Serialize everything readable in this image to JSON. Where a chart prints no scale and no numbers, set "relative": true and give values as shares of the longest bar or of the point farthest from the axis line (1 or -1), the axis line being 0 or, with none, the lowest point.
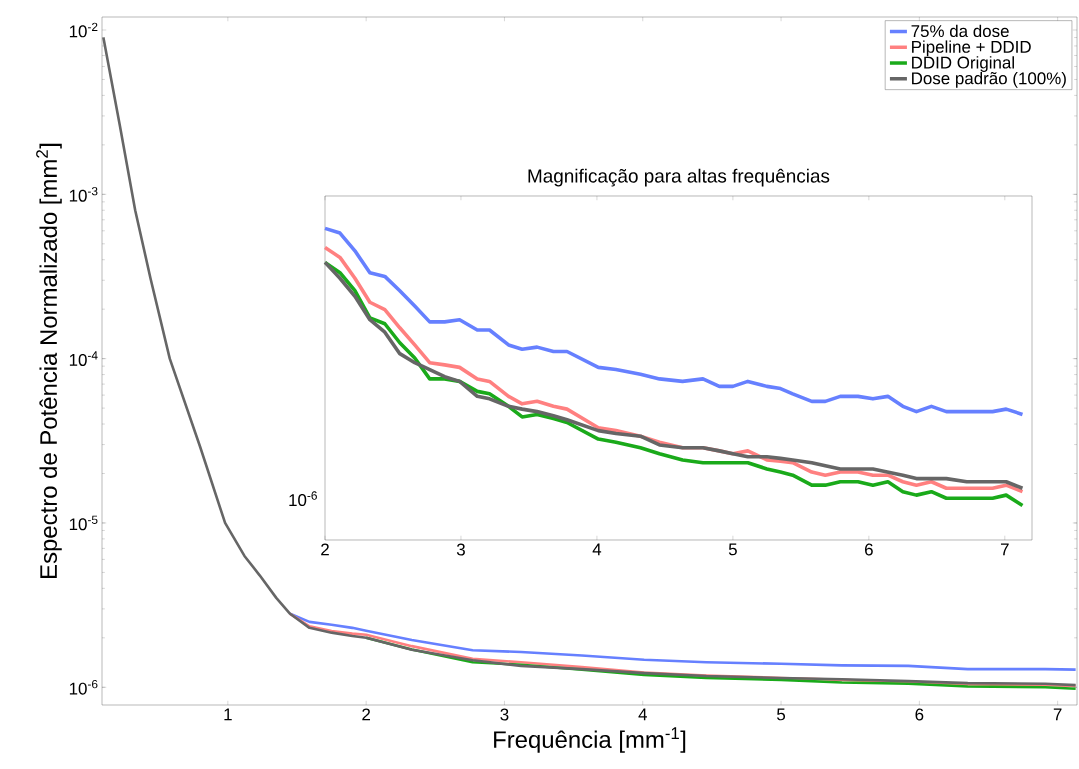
{
  "chart_data": [
    {
      "type": "line",
      "xlabel": "Frequência [mm$^{-1}$]",
      "ylabel": "Espectro de Potência Normalizado [mm$^{2}$]",
      "log": "y",
      "legend": "top right",
      "xlim": [
        0.09,
        7.14
      ],
      "ylim": [
        7.8e-07,
        0.012
      ],
      "xticks": [
        1,
        2,
        3,
        4,
        5,
        6,
        7
      ],
      "yticks": [
        {
          "value": 1e-06,
          "label": "10$^{-6}$"
        },
        {
          "value": 1e-05,
          "label": "10$^{-5}$"
        },
        {
          "value": 0.0001,
          "label": "10$^{-4}$"
        },
        {
          "value": 0.001,
          "label": "10$^{-3}$"
        },
        {
          "value": 0.01,
          "label": "10$^{-2}$"
        }
      ],
      "x": [
        0.1,
        0.22,
        0.33,
        0.44,
        0.58,
        0.8,
        0.98,
        1.12,
        1.23,
        1.35,
        1.45,
        1.59,
        1.75,
        1.9,
        2.0,
        2.33,
        2.77,
        3.12,
        3.56,
        4.01,
        4.46,
        5.0,
        5.44,
        5.92,
        6.35,
        6.91,
        7.13
      ],
      "series": [
        {
          "name": "75% da dose",
          "color": "#6680ff",
          "values": [
            null,
            null,
            null,
            null,
            null,
            null,
            null,
            null,
            null,
            null,
            2.8e-06,
            2.5e-06,
            2.4e-06,
            2.3e-06,
            2.21e-06,
            1.94e-06,
            1.68e-06,
            1.64e-06,
            1.56e-06,
            1.47e-06,
            1.42e-06,
            1.39e-06,
            1.36e-06,
            1.35e-06,
            1.29e-06,
            1.29e-06,
            1.28e-06
          ]
        },
        {
          "name": "Pipeline + DDID",
          "color": "#ff8080",
          "values": [
            null,
            null,
            null,
            null,
            null,
            null,
            null,
            null,
            null,
            null,
            2.8e-06,
            2.35e-06,
            2.2e-06,
            2.12e-06,
            2.09e-06,
            1.78e-06,
            1.49e-06,
            1.42e-06,
            1.33e-06,
            1.23e-06,
            1.18e-06,
            1.14e-06,
            1.11e-06,
            null,
            1.04e-06,
            1.03e-06,
            1.02e-06
          ]
        },
        {
          "name": "DDID Original",
          "color": "#1aaa1a",
          "values": [
            null,
            null,
            null,
            null,
            null,
            null,
            null,
            null,
            null,
            null,
            null,
            null,
            null,
            null,
            2e-06,
            1.7e-06,
            1.42e-06,
            1.37e-06,
            1.28e-06,
            1.19e-06,
            1.14e-06,
            1.11e-06,
            1.07e-06,
            1.05e-06,
            1.01e-06,
            1e-06,
            9.8e-07
          ]
        },
        {
          "name": "Dose padrão (100%)",
          "color": "#666666",
          "values": [
            0.009,
            0.0026,
            0.0008,
            0.00031,
            0.0001,
            2.9e-05,
            1e-05,
            6.3e-06,
            4.8e-06,
            3.5e-06,
            2.8e-06,
            2.3e-06,
            2.15e-06,
            2.05e-06,
            2e-06,
            1.69e-06,
            1.46e-06,
            1.35e-06,
            1.29e-06,
            1.22e-06,
            1.17e-06,
            1.14e-06,
            1.12e-06,
            1.09e-06,
            1.06e-06,
            1.05e-06,
            1.03e-06
          ]
        }
      ]
    },
    {
      "type": "line",
      "title": "Magnificação para altas frequências",
      "relative": true,
      "annotations": [
        "10$^{-6}$"
      ],
      "xlim": [
        2,
        7.2
      ],
      "xticks": [
        2,
        3,
        4,
        5,
        6,
        7
      ],
      "x": [
        2.0,
        2.11,
        2.22,
        2.33,
        2.44,
        2.55,
        2.66,
        2.77,
        2.88,
        2.99,
        3.12,
        3.21,
        3.35,
        3.45,
        3.56,
        3.68,
        3.78,
        4.01,
        4.14,
        4.32,
        4.46,
        4.63,
        4.78,
        4.9,
        5.0,
        5.11,
        5.25,
        5.35,
        5.44,
        5.58,
        5.68,
        5.79,
        5.92,
        6.03,
        6.14,
        6.25,
        6.35,
        6.46,
        6.57,
        6.72,
        6.91,
        7.01,
        7.13
      ],
      "series": [
        {
          "color": "#6680ff",
          "values": [
            1.0,
            0.985,
            0.928,
            0.858,
            0.846,
            0.8,
            0.751,
            0.7,
            0.7,
            0.707,
            0.674,
            0.674,
            0.626,
            0.612,
            0.619,
            0.605,
            0.605,
            0.554,
            0.547,
            0.532,
            0.517,
            0.509,
            0.517,
            0.493,
            0.493,
            0.509,
            0.493,
            0.486,
            0.469,
            0.445,
            0.445,
            0.461,
            0.461,
            0.453,
            0.461,
            0.429,
            0.412,
            0.429,
            0.412,
            0.412,
            0.412,
            0.42,
            0.403
          ]
        },
        {
          "color": "#ff8080",
          "values": [
            0.939,
            0.907,
            0.84,
            0.763,
            0.739,
            0.681,
            0.626,
            0.569,
            0.562,
            0.554,
            0.517,
            0.509,
            0.461,
            0.437,
            0.445,
            0.429,
            0.42,
            0.36,
            0.351,
            0.333,
            0.314,
            0.296,
            0.296,
            0.286,
            0.277,
            0.286,
            0.257,
            0.253,
            0.248,
            0.218,
            0.208,
            0.218,
            0.218,
            0.208,
            0.208,
            0.187,
            0.176,
            0.187,
            0.166,
            0.166,
            0.166,
            0.176,
            0.155
          ]
        },
        {
          "color": "#1aaa1a",
          "values": [
            0.891,
            0.858,
            0.8,
            0.713,
            0.694,
            0.633,
            0.584,
            0.517,
            0.517,
            0.509,
            0.477,
            0.469,
            0.429,
            0.395,
            0.403,
            0.39,
            0.377,
            0.324,
            0.314,
            0.296,
            0.277,
            0.257,
            0.248,
            0.248,
            0.248,
            0.248,
            0.228,
            0.218,
            0.208,
            0.176,
            0.176,
            0.187,
            0.187,
            0.176,
            0.187,
            0.155,
            0.144,
            0.155,
            0.134,
            0.134,
            0.134,
            0.144,
            0.111
          ]
        },
        {
          "color": "#666666",
          "values": [
            0.891,
            0.84,
            0.782,
            0.707,
            0.667,
            0.598,
            0.569,
            0.547,
            0.524,
            0.509,
            0.461,
            0.453,
            0.429,
            0.42,
            0.412,
            0.399,
            0.386,
            0.351,
            0.342,
            0.333,
            0.305,
            0.296,
            0.296,
            0.286,
            0.277,
            0.267,
            0.267,
            0.262,
            0.257,
            0.248,
            0.238,
            0.228,
            0.228,
            0.228,
            0.218,
            0.208,
            0.197,
            0.197,
            0.197,
            0.187,
            0.187,
            0.187,
            0.166
          ]
        }
      ]
    }
  ]
}
